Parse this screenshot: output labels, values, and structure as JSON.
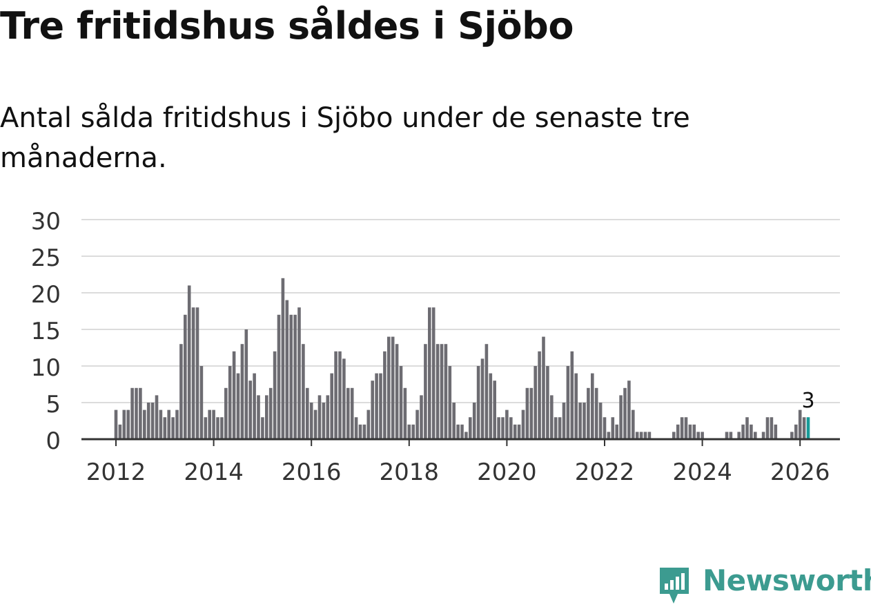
{
  "header": {
    "title": "Tre fritidshus såldes i Sjöbo",
    "subtitle": "Antal sålda fritidshus i Sjöbo under de senaste tre månaderna."
  },
  "brand": {
    "name": "Newsworthy",
    "icon": "newsworthy-logo-icon",
    "color": "#3c9b90"
  },
  "colors": {
    "bar": "#6d6c72",
    "highlight": "#179b98",
    "grid": "#dcdcdc",
    "axis": "#333333"
  },
  "chart_data": {
    "type": "bar",
    "ylim": [
      0,
      30
    ],
    "yticks": [
      "0",
      "5",
      "10",
      "15",
      "20",
      "25",
      "30"
    ],
    "xtick_labels": [
      "2012",
      "2014",
      "2016",
      "2018",
      "2020",
      "2022",
      "2024",
      "2026"
    ],
    "xtick_years": [
      2012,
      2014,
      2016,
      2018,
      2020,
      2022,
      2024,
      2026
    ],
    "grid": true,
    "highlight_label": "3",
    "series": [
      {
        "values": [
          4,
          2,
          4,
          4,
          7,
          7,
          7,
          4,
          5,
          5,
          6,
          4,
          3,
          4,
          3,
          4,
          13,
          17,
          21,
          18,
          18,
          10,
          3,
          4,
          4,
          3,
          3,
          7,
          10,
          12,
          9,
          13,
          15,
          8,
          9,
          6,
          3,
          6,
          7,
          12,
          17,
          22,
          19,
          17,
          17,
          18,
          13,
          7,
          5,
          4,
          6,
          5,
          6,
          9,
          12,
          12,
          11,
          7,
          7,
          3,
          2,
          2,
          4,
          8,
          9,
          9,
          12,
          14,
          14,
          13,
          10,
          7,
          2,
          2,
          4,
          6,
          13,
          18,
          18,
          13,
          13,
          13,
          10,
          5,
          2,
          2,
          1,
          3,
          5,
          10,
          11,
          13,
          9,
          8,
          3,
          3,
          4,
          3,
          2,
          2,
          4,
          7,
          7,
          10,
          12,
          14,
          10,
          6,
          3,
          3,
          5,
          10,
          12,
          9,
          5,
          5,
          7,
          9,
          7,
          5,
          3,
          1,
          3,
          2,
          6,
          7,
          8,
          4,
          1,
          1,
          1,
          1,
          0,
          0,
          0,
          0,
          0,
          1,
          2,
          3,
          3,
          2,
          2,
          1,
          1,
          0,
          0,
          0,
          0,
          0,
          1,
          1,
          0,
          1,
          2,
          3,
          2,
          1,
          0,
          1,
          3,
          3,
          2,
          0,
          0,
          0,
          1,
          2,
          4,
          3,
          3
        ]
      }
    ]
  }
}
